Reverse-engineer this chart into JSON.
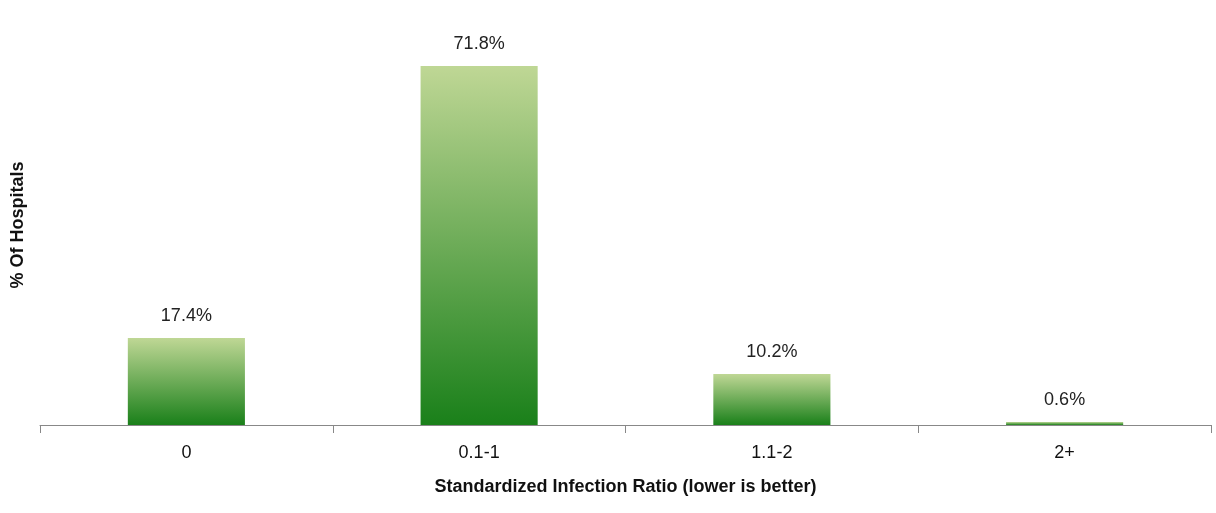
{
  "chart_data": {
    "type": "bar",
    "xlabel": "Standardized Infection Ratio (lower is better)",
    "ylabel": "% Of Hospitals",
    "categories": [
      "0",
      "0.1-1",
      "1.1-2",
      "2+"
    ],
    "values": [
      17.4,
      71.8,
      10.2,
      0.6
    ],
    "value_labels": [
      "17.4%",
      "71.8%",
      "10.2%",
      "0.6%"
    ],
    "color": "#1a801a"
  }
}
